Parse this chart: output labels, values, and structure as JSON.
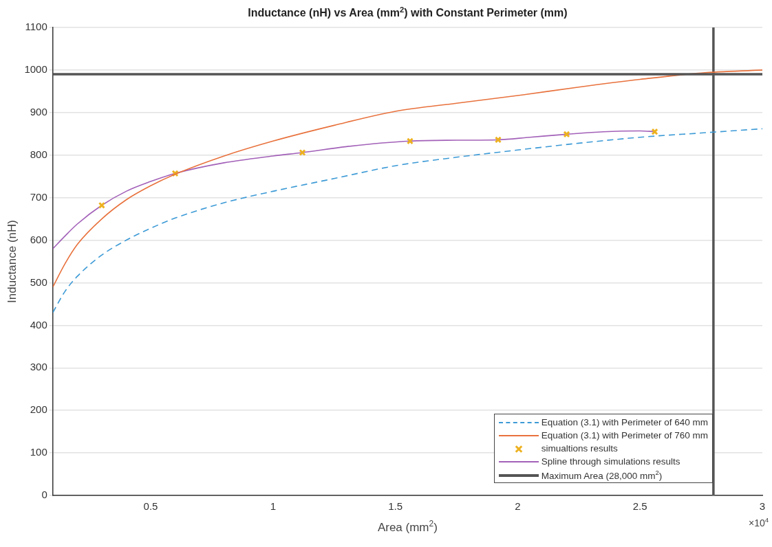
{
  "chart_data": {
    "type": "line",
    "title": "Inductance (nH) vs Area (mm$^{2}$) with Constant Perimeter (mm)",
    "xlabel": "Area (mm$^{2}$)",
    "ylabel": "Inductance (nH)",
    "annotations": [
      "×10$^{4}$"
    ],
    "xlim": [
      0.1,
      3
    ],
    "xticks": [
      0.5,
      1,
      1.5,
      2,
      2.5,
      3
    ],
    "ylim": [
      0,
      1100
    ],
    "yticks": [
      0,
      100,
      200,
      300,
      400,
      500,
      600,
      700,
      800,
      900,
      1000,
      1100
    ],
    "grid": "y",
    "legend": "bottom right",
    "series": [
      {
        "name": "Equation (3.1) with Perimeter of 640 mm",
        "line_style": "dashed",
        "marker": "none",
        "color": "#3c9ad6",
        "x": [
          0.1,
          0.15,
          0.2,
          0.3,
          0.4,
          0.5,
          0.6,
          0.8,
          1,
          1.25,
          1.5,
          1.75,
          2,
          2.25,
          2.5,
          2.75,
          3
        ],
        "values": [
          430,
          480,
          515,
          565,
          600,
          628,
          652,
          688,
          715,
          745,
          775,
          795,
          812,
          828,
          842,
          852,
          862
        ]
      },
      {
        "name": "Equation (3.1) with Perimeter of 760 mm",
        "line_style": "solid",
        "marker": "none",
        "color": "#e8713c",
        "x": [
          0.1,
          0.15,
          0.2,
          0.3,
          0.4,
          0.5,
          0.6,
          0.8,
          1,
          1.25,
          1.5,
          1.75,
          2,
          2.25,
          2.5,
          2.75,
          3
        ],
        "values": [
          490,
          545,
          590,
          650,
          695,
          728,
          755,
          798,
          833,
          870,
          903,
          922,
          940,
          960,
          978,
          993,
          1000
        ]
      },
      {
        "name": "simualtions results",
        "type": "scatter",
        "marker": "cross",
        "color": "#edb120",
        "x": [
          0.3,
          0.6,
          1.12,
          1.56,
          1.92,
          2.2,
          2.56
        ],
        "values": [
          682,
          757,
          806,
          833,
          836,
          849,
          855
        ]
      },
      {
        "name": "Spline through simulations results",
        "line_style": "solid",
        "marker": "none",
        "color": "#a260b8",
        "x": [
          0.1,
          0.15,
          0.2,
          0.3,
          0.4,
          0.5,
          0.6,
          0.8,
          1,
          1.12,
          1.3,
          1.56,
          1.75,
          1.92,
          2.05,
          2.2,
          2.35,
          2.5,
          2.56
        ],
        "values": [
          580,
          610,
          638,
          682,
          715,
          738,
          757,
          782,
          798,
          806,
          820,
          833,
          835,
          836,
          842,
          849,
          855,
          857,
          855
        ]
      },
      {
        "name": "Maximum Area (28,000 mm$^{2}$)",
        "line_style": "solid",
        "marker": "none",
        "color": "#555555",
        "x": [
          2.8,
          2.8
        ],
        "values": [
          0,
          1100
        ]
      }
    ],
    "ref_lines": [
      {
        "axis": "y",
        "value": 990,
        "color": "#555555"
      }
    ]
  }
}
